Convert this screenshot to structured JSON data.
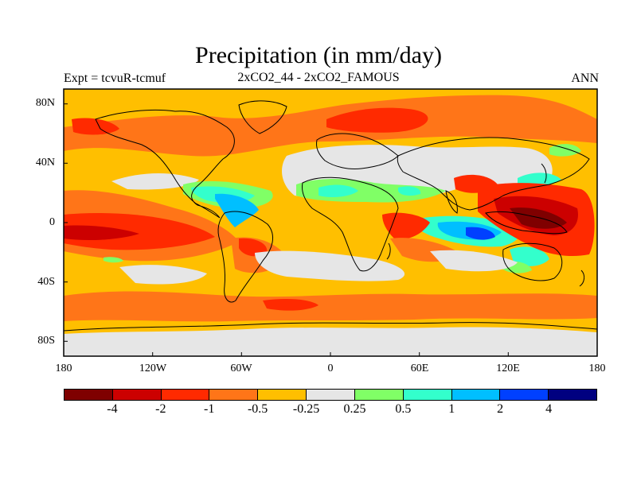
{
  "title": "Precipitation (in mm/day)",
  "subtitle_left": "Expt = tcvuR-tcmuf",
  "subtitle_center": "2xCO2_44 - 2xCO2_FAMOUS",
  "subtitle_right": "ANN",
  "lat_labels": [
    "80N",
    "40N",
    "0",
    "40S",
    "80S"
  ],
  "lon_labels": [
    "180",
    "120W",
    "60W",
    "0",
    "60E",
    "120E",
    "180"
  ],
  "colorbar": {
    "colors": [
      "#7f0000",
      "#cc0000",
      "#ff2a00",
      "#ff7518",
      "#ffbf00",
      "#e6e6e6",
      "#80ff66",
      "#33ffcc",
      "#00bfff",
      "#0040ff",
      "#000080"
    ],
    "labels": [
      "-4",
      "-2",
      "-1",
      "-0.5",
      "-0.25",
      "0.25",
      "0.5",
      "1",
      "2",
      "4"
    ]
  },
  "map_colors": {
    "ocean_base": "#ffbf00",
    "land_outline": "#000000"
  }
}
